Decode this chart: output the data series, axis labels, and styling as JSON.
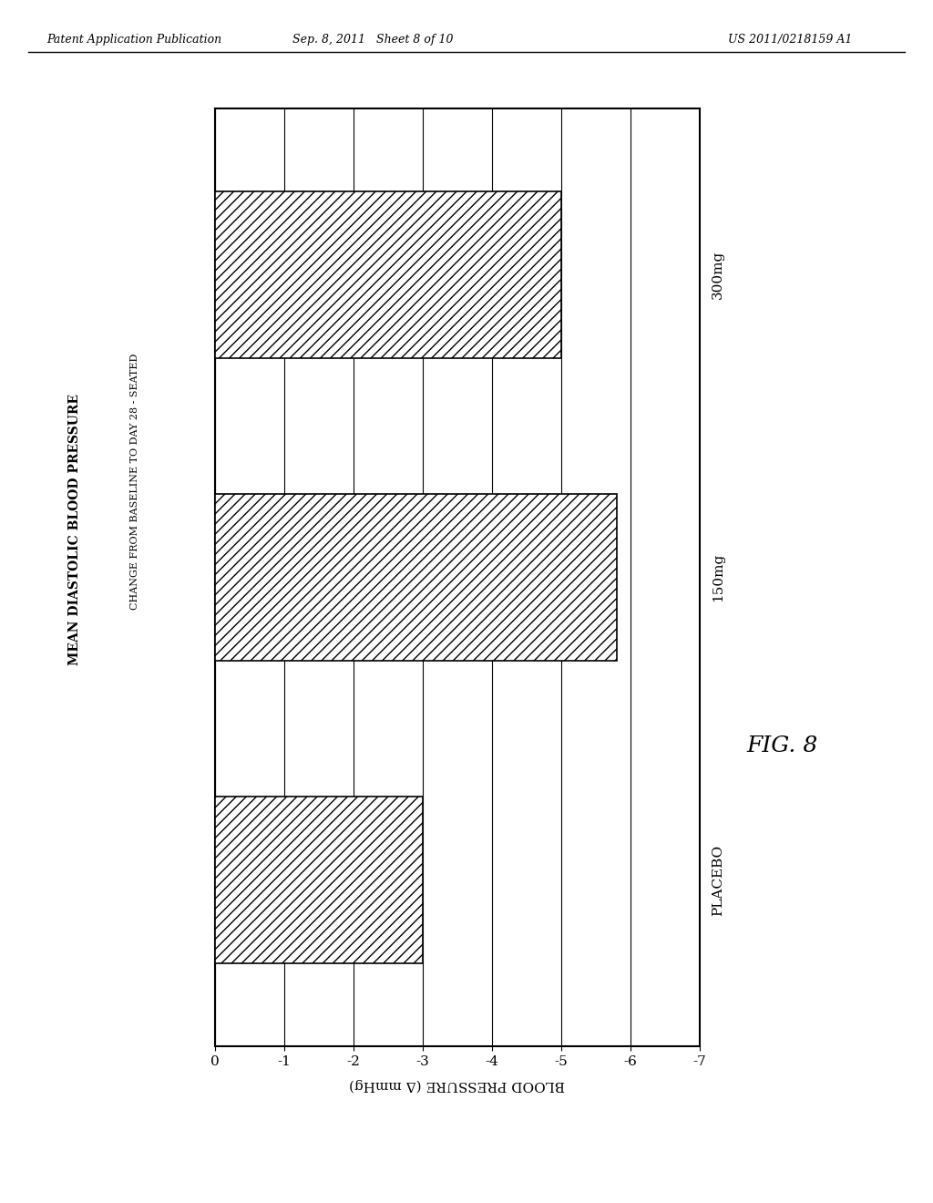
{
  "categories": [
    "PLACEBO",
    "150mg",
    "300mg"
  ],
  "values": [
    -3.0,
    -5.8,
    -5.0
  ],
  "title_line1": "MEAN DIASTOLIC BLOOD PRESSURE",
  "title_line2": "CHANGE FROM BASELINE TO DAY 28 - SEATED",
  "xlabel": "BLOOD PRESSURE (Δ mmHg)",
  "xlim_min": 0,
  "xlim_max": -7,
  "xticks": [
    0,
    -1,
    -2,
    -3,
    -4,
    -5,
    -6,
    -7
  ],
  "xticklabels": [
    "0",
    "-1",
    "-2",
    "-3",
    "-4",
    "-5",
    "-6",
    "-7"
  ],
  "bar_color": "white",
  "hatch": "///",
  "edgecolor": "black",
  "background_color": "white",
  "header_left": "Patent Application Publication",
  "header_mid": "Sep. 8, 2011   Sheet 8 of 10",
  "header_right": "US 2011/0218159 A1",
  "fig_label": "FIG. 8",
  "bar_height": 0.55
}
